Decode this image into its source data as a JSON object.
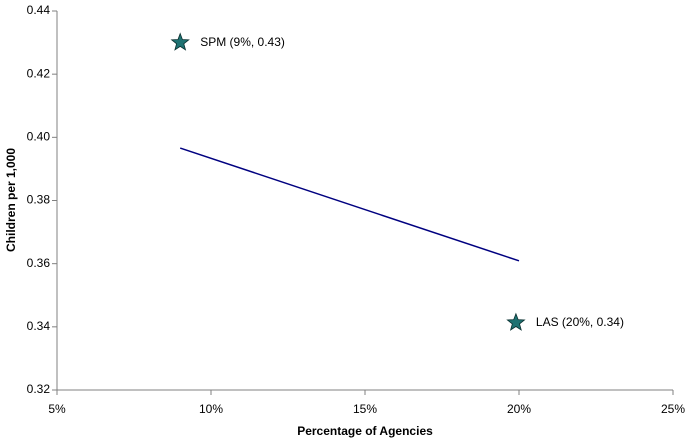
{
  "chart_data": {
    "type": "scatter",
    "xlabel": "Percentage of Agencies",
    "ylabel": "Children per 1,000",
    "xlim": [
      5,
      25
    ],
    "xticks": [
      {
        "value": 5,
        "label": "5%"
      },
      {
        "value": 10,
        "label": "10%"
      },
      {
        "value": 15,
        "label": "15%"
      },
      {
        "value": 20,
        "label": "20%"
      },
      {
        "value": 25,
        "label": "25%"
      }
    ],
    "ylim": [
      0.32,
      0.44
    ],
    "yticks": [
      0.32,
      0.34,
      0.36,
      0.38,
      {
        "value": 0.4,
        "label": "0.40"
      },
      0.42,
      0.44
    ],
    "grid": false,
    "series": [
      {
        "type": "line",
        "color": "#000080",
        "x": [
          9,
          20
        ],
        "values": [
          0.3966,
          0.3609
        ]
      },
      {
        "type": "scatter",
        "marker": "star",
        "color": "#1e7272",
        "x": [
          9,
          19.9
        ],
        "values": [
          0.43,
          0.3413
        ],
        "value_labels": [
          "SPM (9%, 0.43)",
          "LAS (20%, 0.34)"
        ]
      }
    ]
  }
}
